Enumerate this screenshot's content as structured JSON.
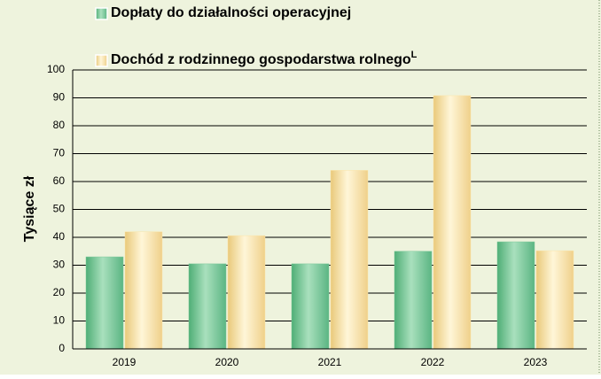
{
  "chart_data": {
    "type": "bar",
    "y_axis_label": "Tysiące zł",
    "categories": [
      "2019",
      "2020",
      "2021",
      "2022",
      "2023"
    ],
    "series": [
      {
        "name": "Dopłaty do działalności operacyjnej",
        "color": "#7cc99a",
        "values": [
          33,
          30.5,
          30.5,
          35,
          38.4
        ]
      },
      {
        "name": "Dochód z rodzinnego gospodarstwa rolnego",
        "name_superscript": "L",
        "color": "#fbe4a8",
        "values": [
          42,
          40.6,
          64,
          90.8,
          35.2
        ]
      }
    ],
    "ylim": [
      0,
      100
    ],
    "yticks": [
      0,
      10,
      20,
      30,
      40,
      50,
      60,
      70,
      80,
      90,
      100
    ],
    "grid": true
  }
}
